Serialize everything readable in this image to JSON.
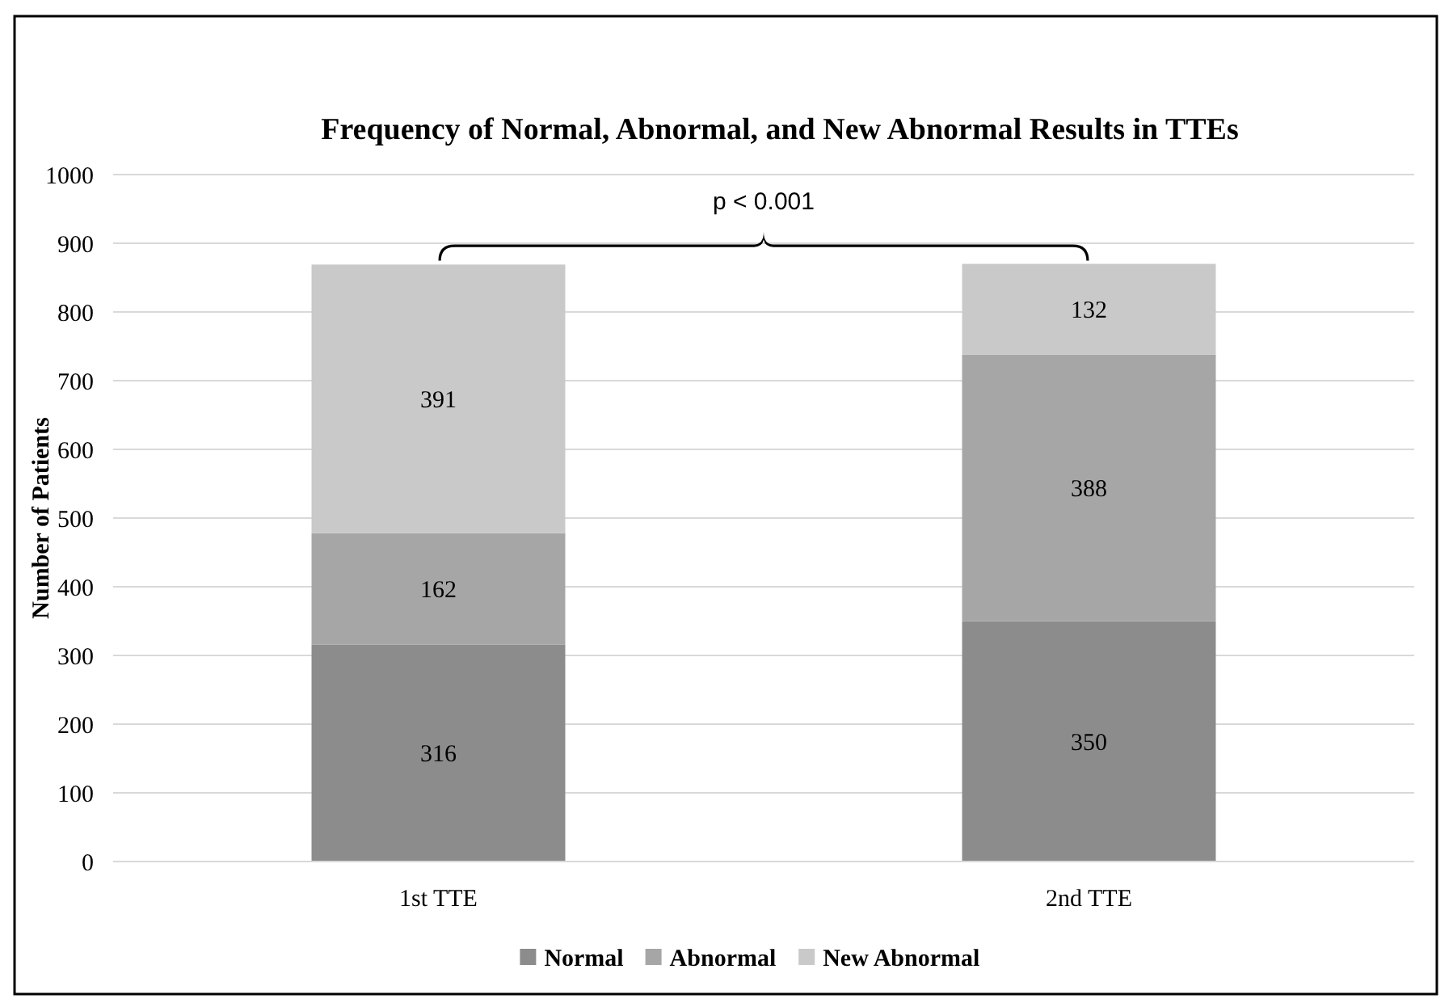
{
  "chart_data": {
    "type": "bar",
    "title": "Frequency of Normal, Abnormal, and New Abnormal Results in TTEs",
    "ylabel": "Number of Patients",
    "categories": [
      "1st TTE",
      "2nd TTE"
    ],
    "stacked": true,
    "series": [
      {
        "name": "Normal",
        "color": "#8c8c8c",
        "values": [
          316,
          350
        ]
      },
      {
        "name": "Abnormal",
        "color": "#a6a6a6",
        "values": [
          162,
          388
        ]
      },
      {
        "name": "New Abnormal",
        "color": "#c9c9c9",
        "values": [
          391,
          132
        ]
      }
    ],
    "ylim": [
      0,
      1000
    ],
    "yticks": [
      0,
      100,
      200,
      300,
      400,
      500,
      600,
      700,
      800,
      900,
      1000
    ],
    "grid": "y",
    "legend": "bottom",
    "data_labels": true,
    "annotations": [
      "p < 0.001"
    ]
  }
}
